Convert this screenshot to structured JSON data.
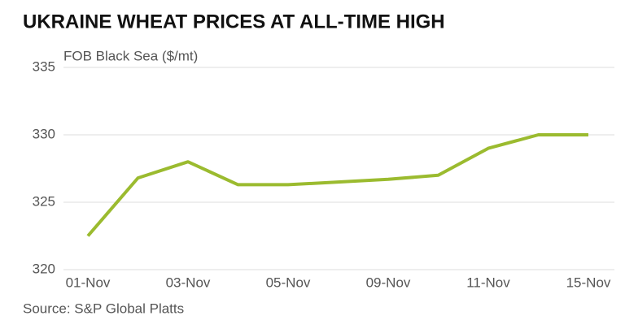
{
  "chart_data": {
    "type": "line",
    "title": "UKRAINE WHEAT PRICES AT ALL-TIME HIGH",
    "y_label": "FOB Black Sea ($/mt)",
    "source": "Source: S&P Global Platts",
    "categories": [
      "01-Nov",
      null,
      "03-Nov",
      null,
      "05-Nov",
      null,
      "09-Nov",
      null,
      "11-Nov",
      null,
      "15-Nov"
    ],
    "series": [
      {
        "name": "FOB Black Sea",
        "color": "#9bbb2f",
        "values": [
          322.5,
          326.8,
          328,
          326.3,
          326.3,
          326.5,
          326.7,
          327,
          329,
          330,
          330
        ]
      }
    ],
    "ylim": [
      320,
      335
    ],
    "yticks": [
      320,
      325,
      330,
      335
    ],
    "grid": true
  }
}
